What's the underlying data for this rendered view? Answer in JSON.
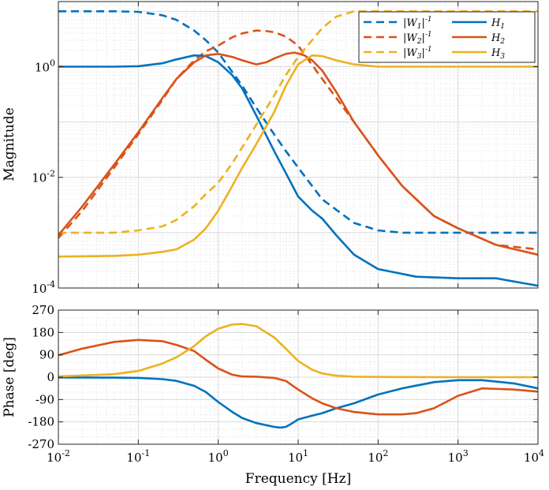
{
  "chart_data": [
    {
      "type": "line",
      "xscale": "log",
      "yscale": "log",
      "xlim": [
        0.01,
        10000
      ],
      "ylim": [
        0.0001,
        15
      ],
      "ylabel": "Magnitude",
      "xlabel": "",
      "grid": true,
      "legend_position": "top-right",
      "yticks": [
        {
          "value": 1,
          "label": "10^0"
        },
        {
          "value": 0.01,
          "label": "10^-2"
        },
        {
          "value": 0.0001,
          "label": "10^-4"
        }
      ],
      "series": [
        {
          "name": "|W1|^-1",
          "color": "#0072BD",
          "style": "dashed",
          "x": [
            0.01,
            0.02,
            0.05,
            0.1,
            0.2,
            0.3,
            0.5,
            0.7,
            1,
            1.5,
            2,
            3,
            5,
            7,
            10,
            20,
            50,
            100,
            200,
            500,
            1000,
            10000
          ],
          "y": [
            10,
            10,
            10,
            9.8,
            8.5,
            7,
            4.5,
            3,
            1.8,
            0.8,
            0.45,
            0.18,
            0.06,
            0.03,
            0.015,
            0.004,
            0.0015,
            0.0011,
            0.001,
            0.001,
            0.001,
            0.001
          ]
        },
        {
          "name": "|W2|^-1",
          "color": "#D95319",
          "style": "dashed",
          "x": [
            0.01,
            0.02,
            0.05,
            0.1,
            0.2,
            0.3,
            0.5,
            0.7,
            1,
            1.5,
            2,
            3,
            4,
            5,
            7,
            10,
            20,
            50,
            100,
            200,
            500,
            1000,
            3000,
            10000
          ],
          "y": [
            0.0008,
            0.0025,
            0.015,
            0.06,
            0.25,
            0.6,
            1.3,
            1.9,
            2.4,
            3.4,
            4,
            4.5,
            4.4,
            4.2,
            3.5,
            2.4,
            0.6,
            0.1,
            0.025,
            0.007,
            0.002,
            0.0012,
            0.0006,
            0.0005
          ]
        },
        {
          "name": "|W3|^-1",
          "color": "#EDB120",
          "style": "dashed",
          "x": [
            0.01,
            0.05,
            0.1,
            0.2,
            0.3,
            0.5,
            0.7,
            1,
            1.5,
            2,
            3,
            5,
            7,
            10,
            20,
            30,
            50,
            100,
            300,
            1000,
            10000
          ],
          "y": [
            0.001,
            0.001,
            0.0011,
            0.0013,
            0.0017,
            0.003,
            0.005,
            0.008,
            0.018,
            0.035,
            0.09,
            0.3,
            0.7,
            1.5,
            5,
            8,
            10,
            10,
            10,
            10,
            10
          ]
        },
        {
          "name": "H1",
          "color": "#0072BD",
          "style": "solid",
          "x": [
            0.01,
            0.05,
            0.1,
            0.2,
            0.3,
            0.5,
            0.7,
            1,
            1.5,
            2,
            3,
            5,
            7,
            10,
            15,
            20,
            30,
            50,
            100,
            300,
            1000,
            3000,
            10000
          ],
          "y": [
            1,
            1,
            1.02,
            1.15,
            1.35,
            1.6,
            1.55,
            1.2,
            0.7,
            0.4,
            0.13,
            0.03,
            0.012,
            0.0045,
            0.0025,
            0.0018,
            0.0009,
            0.0004,
            0.00022,
            0.00016,
            0.00015,
            0.00015,
            0.00011
          ]
        },
        {
          "name": "H2",
          "color": "#D95319",
          "style": "solid",
          "x": [
            0.01,
            0.02,
            0.05,
            0.1,
            0.2,
            0.3,
            0.5,
            0.7,
            1,
            1.5,
            2,
            3,
            4,
            5,
            7,
            9,
            12,
            15,
            20,
            30,
            50,
            100,
            200,
            500,
            1000,
            3000,
            10000
          ],
          "y": [
            0.0009,
            0.003,
            0.017,
            0.065,
            0.27,
            0.6,
            1.2,
            1.6,
            1.7,
            1.5,
            1.3,
            1.1,
            1.2,
            1.4,
            1.7,
            1.8,
            1.6,
            1.3,
            0.85,
            0.35,
            0.1,
            0.025,
            0.007,
            0.002,
            0.0012,
            0.0006,
            0.0004
          ]
        },
        {
          "name": "H3",
          "color": "#EDB120",
          "style": "solid",
          "x": [
            0.01,
            0.05,
            0.1,
            0.2,
            0.3,
            0.5,
            0.7,
            1,
            1.5,
            2,
            3,
            5,
            7,
            10,
            15,
            20,
            30,
            50,
            100,
            300,
            1000,
            10000
          ],
          "y": [
            0.00037,
            0.00038,
            0.0004,
            0.00045,
            0.0005,
            0.00075,
            0.0012,
            0.0025,
            0.007,
            0.015,
            0.04,
            0.15,
            0.45,
            1.1,
            1.6,
            1.55,
            1.3,
            1.1,
            1,
            1,
            1,
            1
          ]
        }
      ]
    },
    {
      "type": "line",
      "xscale": "log",
      "xlim": [
        0.01,
        10000
      ],
      "ylim": [
        -270,
        270
      ],
      "xlabel": "Frequency [Hz]",
      "ylabel": "Phase [deg]",
      "grid": true,
      "xticks": [
        {
          "value": 0.01,
          "label": "10^-2"
        },
        {
          "value": 0.1,
          "label": "10^-1"
        },
        {
          "value": 1,
          "label": "10^0"
        },
        {
          "value": 10,
          "label": "10^1"
        },
        {
          "value": 100,
          "label": "10^2"
        },
        {
          "value": 1000,
          "label": "10^3"
        },
        {
          "value": 10000,
          "label": "10^4"
        }
      ],
      "yticks": [
        {
          "value": 270,
          "label": "270"
        },
        {
          "value": 180,
          "label": "180"
        },
        {
          "value": 90,
          "label": "90"
        },
        {
          "value": 0,
          "label": "0"
        },
        {
          "value": -90,
          "label": "-90"
        },
        {
          "value": -180,
          "label": "-180"
        },
        {
          "value": -270,
          "label": "-270"
        }
      ],
      "series": [
        {
          "name": "H1",
          "color": "#0072BD",
          "x": [
            0.01,
            0.05,
            0.1,
            0.2,
            0.3,
            0.5,
            0.7,
            1,
            1.5,
            2,
            3,
            5,
            6,
            7,
            8,
            10,
            15,
            20,
            30,
            50,
            100,
            200,
            500,
            1000,
            2000,
            5000,
            10000
          ],
          "y": [
            -1,
            -2,
            -3,
            -8,
            -15,
            -35,
            -60,
            -100,
            -140,
            -165,
            -185,
            -200,
            -203,
            -200,
            -190,
            -170,
            -155,
            -145,
            -125,
            -105,
            -70,
            -45,
            -20,
            -12,
            -12,
            -25,
            -45
          ]
        },
        {
          "name": "H2",
          "color": "#D95319",
          "x": [
            0.01,
            0.02,
            0.05,
            0.1,
            0.2,
            0.3,
            0.5,
            0.7,
            1,
            1.5,
            2,
            3,
            4,
            5,
            7,
            10,
            15,
            20,
            30,
            50,
            100,
            200,
            300,
            500,
            1000,
            2000,
            5000,
            10000
          ],
          "y": [
            88,
            115,
            142,
            150,
            145,
            130,
            105,
            70,
            35,
            10,
            3,
            2,
            -1,
            -3,
            -15,
            -50,
            -85,
            -105,
            -125,
            -140,
            -150,
            -150,
            -145,
            -125,
            -75,
            -45,
            -50,
            -58
          ]
        },
        {
          "name": "H3",
          "color": "#EDB120",
          "x": [
            0.01,
            0.05,
            0.1,
            0.2,
            0.3,
            0.5,
            0.7,
            1,
            1.5,
            2,
            3,
            5,
            7,
            10,
            15,
            20,
            30,
            50,
            100,
            1000,
            10000
          ],
          "y": [
            3,
            12,
            25,
            55,
            80,
            125,
            165,
            195,
            212,
            214,
            205,
            160,
            115,
            65,
            30,
            15,
            6,
            2,
            1,
            0,
            0
          ]
        }
      ]
    }
  ]
}
